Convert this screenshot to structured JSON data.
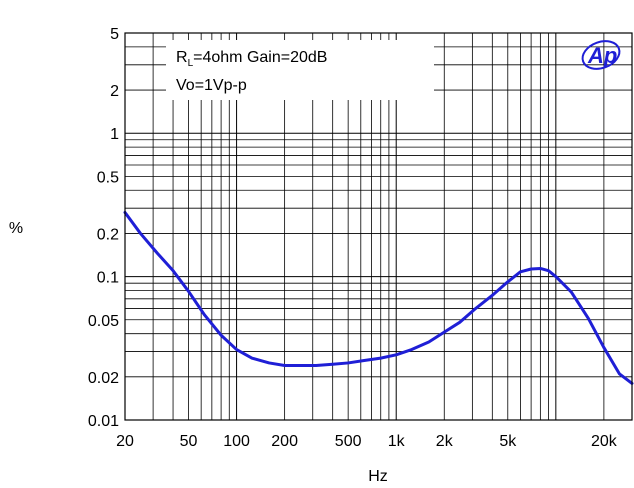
{
  "chart_data": {
    "type": "line",
    "title": "",
    "xlabel": "Hz",
    "ylabel": "%",
    "x_scale": "log",
    "y_scale": "log",
    "xlim": [
      20,
      30000
    ],
    "ylim": [
      0.01,
      5
    ],
    "x_ticks": [
      {
        "value": 20,
        "label": "20"
      },
      {
        "value": 50,
        "label": "50"
      },
      {
        "value": 100,
        "label": "100"
      },
      {
        "value": 200,
        "label": "200"
      },
      {
        "value": 500,
        "label": "500"
      },
      {
        "value": 1000,
        "label": "1k"
      },
      {
        "value": 2000,
        "label": "2k"
      },
      {
        "value": 5000,
        "label": "5k"
      },
      {
        "value": 20000,
        "label": "20k"
      }
    ],
    "y_ticks": [
      {
        "value": 0.01,
        "label": "0.01"
      },
      {
        "value": 0.02,
        "label": "0.02"
      },
      {
        "value": 0.05,
        "label": "0.05"
      },
      {
        "value": 0.1,
        "label": "0.1"
      },
      {
        "value": 0.2,
        "label": "0.2"
      },
      {
        "value": 0.5,
        "label": "0.5"
      },
      {
        "value": 1,
        "label": "1"
      },
      {
        "value": 2,
        "label": "2"
      },
      {
        "value": 5,
        "label": "5"
      }
    ],
    "grid": true,
    "line_color": "#1f1fd6",
    "annotation": {
      "line1_prefix": "R",
      "line1_sub": "L",
      "line1_rest": "=4ohm Gain=20dB",
      "line2": "Vo=1Vp-p"
    },
    "logo": {
      "text": "Ap",
      "color": "#1f1fd6"
    },
    "series": [
      {
        "x": [
          20,
          25,
          32,
          40,
          50,
          63,
          80,
          100,
          125,
          160,
          200,
          250,
          315,
          400,
          500,
          630,
          800,
          1000,
          1250,
          1600,
          2000,
          2500,
          3150,
          4000,
          5000,
          6000,
          7000,
          8000,
          9000,
          10000,
          12500,
          16000,
          20000,
          25000,
          30000
        ],
        "y": [
          0.28,
          0.2,
          0.145,
          0.11,
          0.079,
          0.054,
          0.039,
          0.031,
          0.027,
          0.025,
          0.024,
          0.024,
          0.024,
          0.0245,
          0.025,
          0.026,
          0.027,
          0.0285,
          0.031,
          0.035,
          0.041,
          0.048,
          0.06,
          0.074,
          0.092,
          0.108,
          0.113,
          0.114,
          0.11,
          0.1,
          0.078,
          0.051,
          0.032,
          0.021,
          0.018
        ]
      }
    ]
  }
}
